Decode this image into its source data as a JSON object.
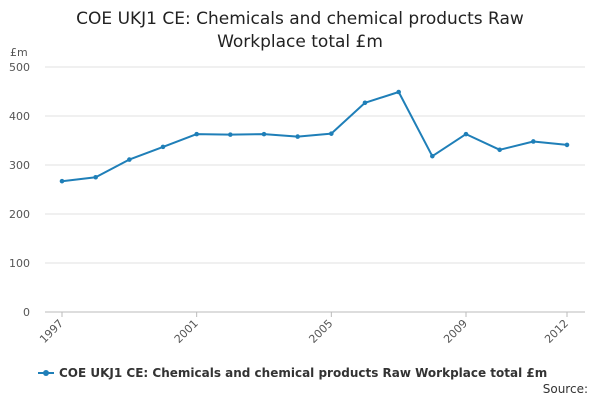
{
  "chart_data": {
    "type": "line",
    "title_lines": [
      "COE UKJ1 CE: Chemicals and chemical products Raw",
      "Workplace total £m"
    ],
    "unit": "£m",
    "xlabel": "",
    "ylabel": "£m",
    "x": [
      1997,
      1998,
      1999,
      2000,
      2001,
      2002,
      2003,
      2004,
      2005,
      2006,
      2007,
      2008,
      2009,
      2010,
      2011,
      2012
    ],
    "x_tick_labels": [
      "1997",
      "2001",
      "2005",
      "2009",
      "2012"
    ],
    "x_tick_values": [
      1997,
      2001,
      2005,
      2009,
      2012
    ],
    "y_ticks": [
      0,
      100,
      200,
      300,
      400,
      500
    ],
    "ylim": [
      0,
      500
    ],
    "series": [
      {
        "name": "COE UKJ1 CE: Chemicals and chemical products Raw Workplace total £m",
        "color": "#1f7fb8",
        "values": [
          267,
          275,
          311,
          337,
          363,
          362,
          363,
          358,
          364,
          427,
          449,
          318,
          363,
          331,
          348,
          341
        ]
      }
    ],
    "grid": true,
    "legend_position": "bottom-left"
  },
  "source_label": "Source:"
}
